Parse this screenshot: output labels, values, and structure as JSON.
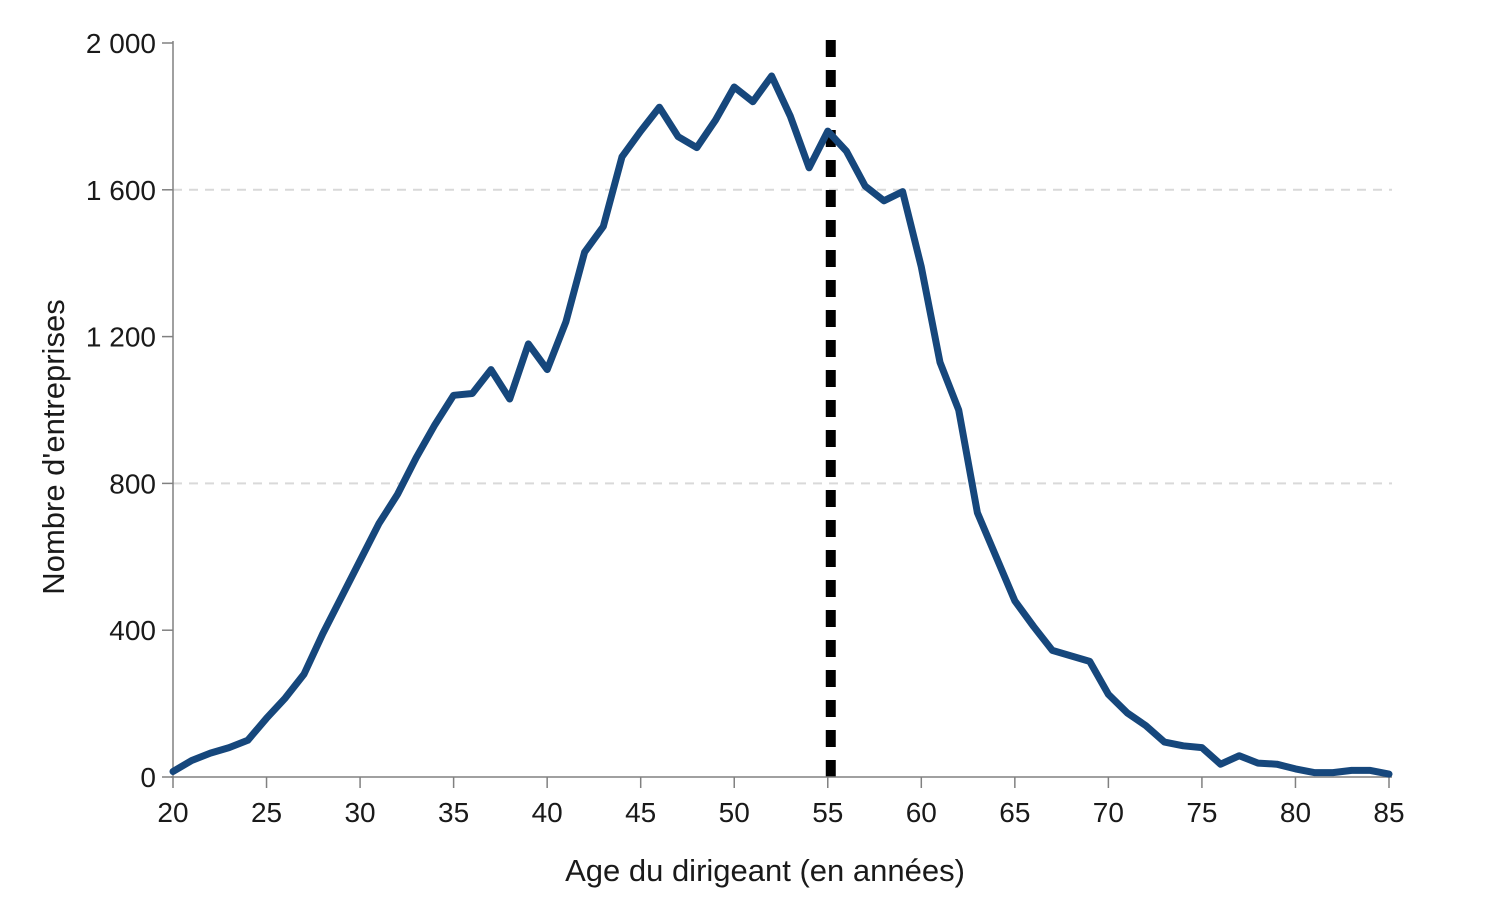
{
  "chart_data": {
    "type": "line",
    "title": "",
    "xlabel": "Age du dirigeant (en années)",
    "ylabel": "Nombre d'entreprises",
    "series_name": "Nombre d'entreprises",
    "x": [
      20,
      21,
      22,
      23,
      24,
      25,
      26,
      27,
      28,
      29,
      30,
      31,
      32,
      33,
      34,
      35,
      36,
      37,
      38,
      39,
      40,
      41,
      42,
      43,
      44,
      45,
      46,
      47,
      48,
      49,
      50,
      51,
      52,
      53,
      54,
      55,
      56,
      57,
      58,
      59,
      60,
      61,
      62,
      63,
      64,
      65,
      66,
      67,
      68,
      69,
      70,
      71,
      72,
      73,
      74,
      75,
      76,
      77,
      78,
      79,
      80,
      81,
      82,
      83,
      84,
      85
    ],
    "values": [
      15,
      45,
      65,
      80,
      100,
      160,
      215,
      280,
      390,
      490,
      590,
      690,
      770,
      870,
      960,
      1040,
      1045,
      1110,
      1030,
      1180,
      1110,
      1240,
      1430,
      1500,
      1690,
      1760,
      1825,
      1745,
      1715,
      1790,
      1880,
      1840,
      1910,
      1800,
      1660,
      1760,
      1705,
      1610,
      1570,
      1595,
      1390,
      1130,
      1000,
      720,
      600,
      480,
      410,
      345,
      330,
      315,
      225,
      175,
      140,
      95,
      85,
      80,
      35,
      58,
      38,
      35,
      22,
      12,
      12,
      18,
      18,
      8
    ],
    "xlim": [
      20,
      85
    ],
    "ylim": [
      0,
      2000
    ],
    "x_ticks": [
      20,
      25,
      30,
      35,
      40,
      45,
      50,
      55,
      60,
      65,
      70,
      75,
      80,
      85
    ],
    "y_ticks": [
      0,
      400,
      800,
      1200,
      1600,
      2000
    ],
    "y_tick_labels": [
      "0",
      "400",
      "800",
      "1 200",
      "1 600",
      "2 000"
    ],
    "gridlines_y": [
      800,
      1600
    ],
    "reference_line_x": 55,
    "grid": "dashed-partial",
    "legend_position": "none",
    "colors": {
      "line": "#16477c",
      "grid": "#d9d9d9",
      "axis": "#808080",
      "reference_line": "#000000",
      "text": "#1a1a1a"
    }
  }
}
